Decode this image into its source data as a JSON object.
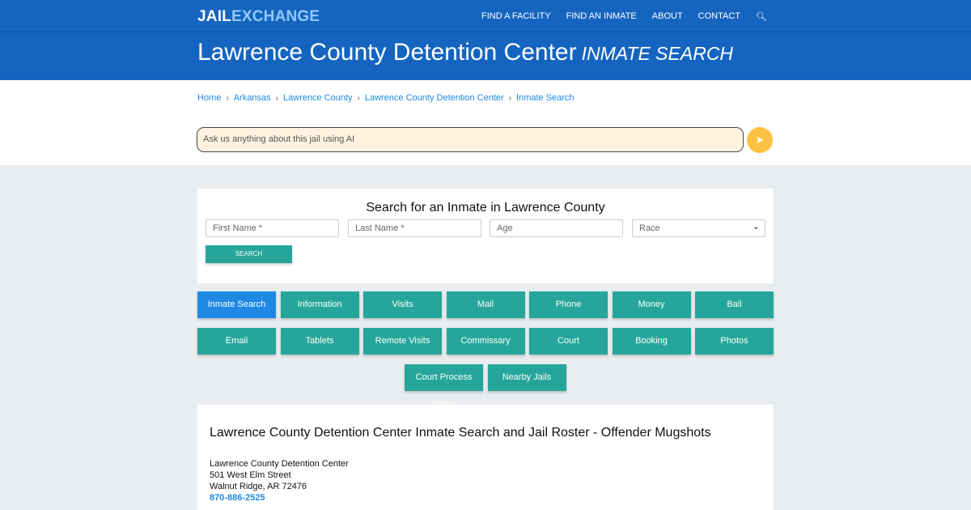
{
  "nav": {
    "logo_a": "JAIL",
    "logo_b": "EXCHANGE",
    "items": [
      "FIND A FACILITY",
      "FIND AN INMATE",
      "ABOUT",
      "CONTACT"
    ],
    "search_icon": "search-icon"
  },
  "hero": {
    "title": "Lawrence County Detention Center",
    "subtitle": "INMATE SEARCH"
  },
  "breadcrumbs": [
    "Home",
    "Arkansas",
    "Lawrence County",
    "Lawrence County Detention Center",
    "Inmate Search"
  ],
  "ai": {
    "placeholder": "Ask us anything about this jail using AI",
    "send_icon": "paper-plane-icon"
  },
  "search": {
    "title": "Search for an Inmate in Lawrence County",
    "first": "First Name *",
    "last": "Last Name *",
    "age": "Age",
    "race": "Race",
    "button": "SEARCH"
  },
  "buttons": [
    [
      "Inmate Search",
      "Information",
      "Visits",
      "Mail",
      "Phone",
      "Money",
      "Bail"
    ],
    [
      "Email",
      "Tablets",
      "Remote Visits",
      "Commissary",
      "Court",
      "Booking",
      "Photos"
    ],
    [
      "Court Process Video",
      "Nearby Jails"
    ]
  ],
  "colors": {
    "primary": "#1565c0",
    "teal": "#26a69a",
    "active": "#1e88e5"
  },
  "info": {
    "title": "Lawrence County Detention Center Inmate Search and Jail Roster - Offender Mugshots",
    "name": "Lawrence County Detention Center",
    "street": "501 West Elm Street",
    "city": "Walnut Ridge, AR 72476",
    "phone": "870-886-2525"
  }
}
